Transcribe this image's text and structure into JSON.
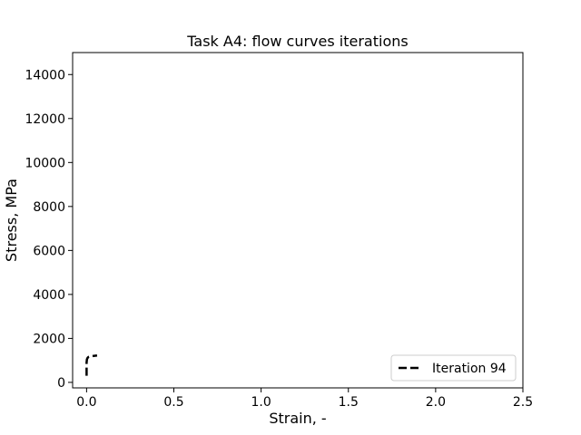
{
  "chart_data": {
    "type": "line",
    "title": "Task A4: flow curves iterations",
    "xlabel": "Strain, -",
    "ylabel": "Stress, MPa",
    "xlim": [
      -0.08,
      2.5
    ],
    "ylim": [
      -250,
      15000
    ],
    "x_ticks": [
      0.0,
      0.5,
      1.0,
      1.5,
      2.0,
      2.5
    ],
    "x_tick_labels": [
      "0.0",
      "0.5",
      "1.0",
      "1.5",
      "2.0",
      "2.5"
    ],
    "y_ticks": [
      0,
      2000,
      4000,
      6000,
      8000,
      10000,
      12000,
      14000
    ],
    "y_tick_labels": [
      "0",
      "2000",
      "4000",
      "6000",
      "8000",
      "10000",
      "12000",
      "14000"
    ],
    "grid": false,
    "legend_position": "lower-right",
    "series": [
      {
        "name": "Iteration 94",
        "color": "#000000",
        "line_style": "dashed",
        "x": [
          0.0,
          0.0,
          0.002,
          0.006,
          0.012,
          0.02,
          0.03,
          0.04,
          0.05,
          0.06
        ],
        "y": [
          300,
          900,
          1050,
          1120,
          1160,
          1180,
          1195,
          1205,
          1215,
          1225
        ]
      }
    ]
  }
}
